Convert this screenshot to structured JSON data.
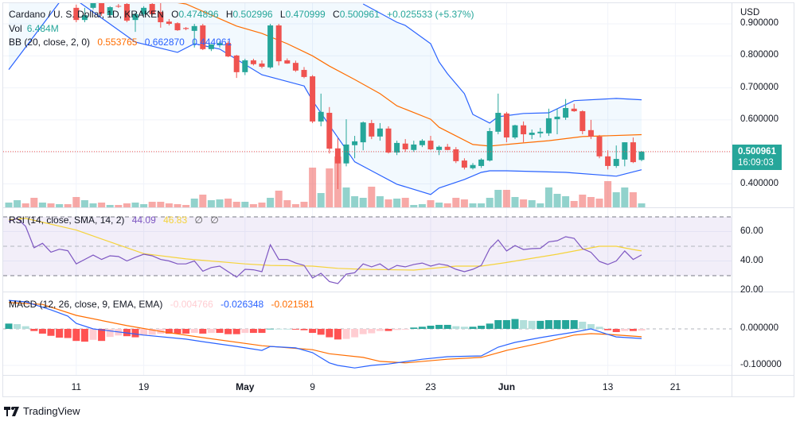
{
  "header": {
    "symbol": "Cardano / U. S. Dollar, 1D, KRAKEN",
    "o_label": "O",
    "o": "0.474896",
    "h_label": "H",
    "h": "0.502996",
    "l_label": "L",
    "l": "0.470999",
    "c_label": "C",
    "c": "0.500961",
    "change": "+0.025533 (+5.37%)"
  },
  "volume": {
    "label": "Vol",
    "value": "6.484M"
  },
  "bb": {
    "label": "BB (20, close, 2, 0)",
    "basis": "0.553765",
    "upper": "0.662870",
    "lower": "0.444061"
  },
  "rsi": {
    "label": "RSI (14, close, SMA, 14, 2)",
    "value": "44.09",
    "sma": "46.83",
    "extra1": "∅",
    "extra2": "∅"
  },
  "macd": {
    "label": "MACD (12, 26, close, 9, EMA, EMA)",
    "hist": "-0.004766",
    "macd": "-0.026348",
    "signal": "-0.021581"
  },
  "price_axis": {
    "currency": "USD",
    "ticks": [
      "0.900000",
      "0.800000",
      "0.700000",
      "0.600000",
      "0.400000"
    ],
    "last_price": "0.500961",
    "countdown": "16:09:03"
  },
  "rsi_axis": {
    "ticks": [
      "60.00",
      "40.00",
      "20.00"
    ]
  },
  "macd_axis": {
    "ticks": [
      "0.000000",
      "-0.100000"
    ]
  },
  "time_axis": {
    "ticks": [
      {
        "label": "11",
        "date": "Apr 11"
      },
      {
        "label": "19",
        "date": "Apr 19"
      },
      {
        "label": "May",
        "date": "May 1"
      },
      {
        "label": "9",
        "date": "May 9"
      },
      {
        "label": "23",
        "date": "May 23"
      },
      {
        "label": "Jun",
        "date": "Jun 1"
      },
      {
        "label": "13",
        "date": "Jun 13"
      },
      {
        "label": "21",
        "date": "Jun 21"
      }
    ]
  },
  "brand": "TradingView",
  "colors": {
    "up": "#26a69a",
    "down": "#ef5350",
    "bb_basis": "#ff6d00",
    "bb_band": "#2962ff",
    "rsi": "#7e57c2",
    "rsi_sma": "#f5d33b",
    "macd": "#2962ff",
    "signal": "#ff6d00",
    "text_green": "#26a69a"
  },
  "chart_data": {
    "type": "candlestick",
    "title": "Cardano / U. S. Dollar, 1D, KRAKEN",
    "ylim": [
      0.33,
      0.974
    ],
    "grid": true,
    "candles_fields": [
      "date",
      "open",
      "high",
      "low",
      "close",
      "volume_M",
      "volume_up"
    ],
    "candles": [
      [
        "Apr 3",
        null,
        null,
        null,
        null,
        7.8,
        true
      ],
      [
        "Apr 4",
        null,
        null,
        null,
        null,
        11.7,
        true
      ],
      [
        "Apr 5",
        null,
        null,
        null,
        null,
        6.5,
        false
      ],
      [
        "Apr 6",
        null,
        null,
        null,
        null,
        15.6,
        false
      ],
      [
        "Apr 7",
        null,
        null,
        null,
        null,
        7.8,
        true
      ],
      [
        "Apr 8",
        null,
        null,
        null,
        null,
        6.5,
        false
      ],
      [
        "Apr 9",
        null,
        null,
        null,
        null,
        5.2,
        true
      ],
      [
        "Apr 10",
        null,
        null,
        null,
        null,
        5.2,
        false
      ],
      [
        "Apr 11",
        0.95,
        0.96,
        0.905,
        0.912,
        16.9
      ],
      [
        "Apr 12",
        0.912,
        0.95,
        0.905,
        0.927,
        11.7
      ],
      [
        "Apr 13",
        0.95,
        0.975,
        0.945,
        0.965,
        6.5
      ],
      [
        "Apr 14",
        0.965,
        0.97,
        0.925,
        0.932,
        7.8
      ],
      [
        "Apr 15",
        0.927,
        0.955,
        0.92,
        0.952,
        3.9
      ],
      [
        "Apr 16",
        0.956,
        0.962,
        0.95,
        0.954,
        3.9
      ],
      [
        "Apr 17",
        0.962,
        0.968,
        0.905,
        0.91,
        6.5
      ],
      [
        "Apr 18",
        0.912,
        0.935,
        0.875,
        0.93,
        7.8
      ],
      [
        "Apr 19",
        0.93,
        0.955,
        0.925,
        0.95,
        5.2
      ],
      [
        "Apr 20",
        0.962,
        0.968,
        0.925,
        0.93,
        9.1
      ],
      [
        "Apr 21",
        0.937,
        0.965,
        0.888,
        0.905,
        9.1
      ],
      [
        "Apr 22",
        0.907,
        0.915,
        0.895,
        0.9,
        6.5
      ],
      [
        "Apr 23",
        0.902,
        0.905,
        0.878,
        0.88,
        5.2
      ],
      [
        "Apr 24",
        0.887,
        0.89,
        0.88,
        0.884,
        3.9
      ],
      [
        "Apr 25",
        0.878,
        0.9,
        0.826,
        0.893,
        14.3
      ],
      [
        "Apr 26",
        0.895,
        0.9,
        0.818,
        0.821,
        20.8
      ],
      [
        "Apr 27",
        0.821,
        0.836,
        0.815,
        0.836,
        11.7
      ],
      [
        "Apr 28",
        0.833,
        0.845,
        0.826,
        0.84,
        13.0
      ],
      [
        "Apr 29",
        0.84,
        0.846,
        0.796,
        0.798,
        14.3
      ],
      [
        "Apr 30",
        0.801,
        0.803,
        0.731,
        0.749,
        9.1
      ],
      [
        "May 1",
        0.749,
        0.791,
        0.74,
        0.786,
        9.1
      ],
      [
        "May 2",
        0.786,
        0.791,
        0.77,
        0.774,
        5.2
      ],
      [
        "May 3",
        0.776,
        0.786,
        0.761,
        0.766,
        7.8
      ],
      [
        "May 4",
        0.764,
        0.9,
        0.76,
        0.895,
        15.6
      ],
      [
        "May 5",
        0.895,
        0.9,
        0.77,
        0.783,
        27.3
      ],
      [
        "May 6",
        0.786,
        0.792,
        0.775,
        0.776,
        11.7
      ],
      [
        "May 7",
        0.778,
        0.785,
        0.75,
        0.754,
        5.2
      ],
      [
        "May 8",
        0.756,
        0.765,
        0.73,
        0.734,
        9.1
      ],
      [
        "May 9",
        0.736,
        0.74,
        0.59,
        0.595,
        65.0
      ],
      [
        "May 10",
        0.595,
        0.682,
        0.58,
        0.625,
        23.4
      ],
      [
        "May 11",
        0.622,
        0.64,
        0.495,
        0.51,
        63.7
      ],
      [
        "May 12",
        0.511,
        0.543,
        0.384,
        0.464,
        83.2
      ],
      [
        "May 13",
        0.464,
        0.602,
        0.455,
        0.523,
        32.5
      ],
      [
        "May 14",
        0.521,
        0.55,
        0.48,
        0.533,
        18.2
      ],
      [
        "May 15",
        0.53,
        0.595,
        0.505,
        0.592,
        15.6
      ],
      [
        "May 16",
        0.59,
        0.6,
        0.54,
        0.548,
        33.8
      ],
      [
        "May 17",
        0.548,
        0.59,
        0.535,
        0.573,
        18.2
      ],
      [
        "May 18",
        0.573,
        0.58,
        0.495,
        0.498,
        13.0
      ],
      [
        "May 19",
        0.498,
        0.535,
        0.49,
        0.528,
        14.3
      ],
      [
        "May 20",
        0.526,
        0.54,
        0.5,
        0.508,
        15.6
      ],
      [
        "May 21",
        0.506,
        0.535,
        0.5,
        0.523,
        3.9
      ],
      [
        "May 22",
        0.521,
        0.54,
        0.515,
        0.535,
        5.2
      ],
      [
        "May 23",
        0.535,
        0.55,
        0.505,
        0.508,
        11.7
      ],
      [
        "May 24",
        0.506,
        0.52,
        0.49,
        0.516,
        7.8
      ],
      [
        "May 25",
        0.516,
        0.525,
        0.505,
        0.506,
        6.5
      ],
      [
        "May 26",
        0.508,
        0.515,
        0.465,
        0.471,
        15.6
      ],
      [
        "May 27",
        0.473,
        0.48,
        0.445,
        0.451,
        13.0
      ],
      [
        "May 28",
        0.449,
        0.465,
        0.445,
        0.459,
        6.5
      ],
      [
        "May 29",
        0.456,
        0.48,
        0.45,
        0.476,
        6.5
      ],
      [
        "May 30",
        0.473,
        0.575,
        0.47,
        0.565,
        15.6
      ],
      [
        "May 31",
        0.563,
        0.682,
        0.555,
        0.622,
        28.6
      ],
      [
        "Jun 1",
        0.62,
        0.625,
        0.53,
        0.545,
        28.6
      ],
      [
        "Jun 2",
        0.545,
        0.585,
        0.54,
        0.583,
        16.9
      ],
      [
        "Jun 3",
        0.583,
        0.595,
        0.53,
        0.555,
        13.0
      ],
      [
        "Jun 4",
        0.553,
        0.57,
        0.54,
        0.56,
        11.7
      ],
      [
        "Jun 5",
        0.558,
        0.575,
        0.545,
        0.563,
        6.5
      ],
      [
        "Jun 6",
        0.558,
        0.635,
        0.55,
        0.605,
        32.5
      ],
      [
        "Jun 7",
        0.602,
        0.635,
        0.555,
        0.61,
        22.1
      ],
      [
        "Jun 8",
        0.607,
        0.665,
        0.6,
        0.637,
        18.2
      ],
      [
        "Jun 9",
        0.635,
        0.65,
        0.625,
        0.627,
        10.4
      ],
      [
        "Jun 10",
        0.627,
        0.63,
        0.555,
        0.565,
        20.8
      ],
      [
        "Jun 11",
        0.568,
        0.6,
        0.54,
        0.548,
        16.9
      ],
      [
        "Jun 12",
        0.548,
        0.553,
        0.48,
        0.486,
        14.3
      ],
      [
        "Jun 13",
        0.486,
        0.505,
        0.445,
        0.456,
        42.9
      ],
      [
        "Jun 14",
        0.456,
        0.52,
        0.45,
        0.478,
        24.7
      ],
      [
        "Jun 15",
        0.476,
        0.53,
        0.455,
        0.53,
        32.5
      ],
      [
        "Jun 16",
        0.53,
        0.545,
        0.465,
        0.468,
        24.7
      ],
      [
        "Jun 17",
        0.474896,
        0.502996,
        0.470999,
        0.500961,
        6.484
      ]
    ],
    "bb_upper": [
      [
        "May 15",
        0.962
      ],
      [
        "May 19",
        0.905
      ],
      [
        "May 20",
        0.895
      ],
      [
        "May 23",
        0.838
      ],
      [
        "May 24",
        0.781
      ],
      [
        "May 25",
        0.744
      ],
      [
        "May 27",
        0.682
      ],
      [
        "May 28",
        0.617
      ],
      [
        "May 30",
        0.59
      ],
      [
        "May 31",
        0.61
      ],
      [
        "Jun 3",
        0.62
      ],
      [
        "Jun 6",
        0.622
      ],
      [
        "Jun 9",
        0.66
      ],
      [
        "Jun 14",
        0.667
      ],
      [
        "Jun 17",
        0.66287
      ]
    ],
    "bb_basis": [
      [
        "Apr 21",
        0.974
      ],
      [
        "Apr 24",
        0.962
      ],
      [
        "Apr 30",
        0.893
      ],
      [
        "May 3",
        0.87
      ],
      [
        "May 6",
        0.838
      ],
      [
        "May 9",
        0.8
      ],
      [
        "May 11",
        0.768
      ],
      [
        "May 14",
        0.726
      ],
      [
        "May 17",
        0.682
      ],
      [
        "May 19",
        0.644
      ],
      [
        "May 23",
        0.602
      ],
      [
        "May 24",
        0.577
      ],
      [
        "May 28",
        0.523
      ],
      [
        "May 30",
        0.518
      ],
      [
        "Jun 3",
        0.528
      ],
      [
        "Jun 6",
        0.535
      ],
      [
        "Jun 10",
        0.548
      ],
      [
        "Jun 17",
        0.553765
      ]
    ],
    "bb_lower": [
      [
        "Apr 3",
        0.757
      ],
      [
        "Apr 9",
        0.967
      ],
      [
        "Apr 10",
        0.99
      ],
      [
        "Apr 11",
        0.974
      ],
      [
        "Apr 13",
        0.937
      ],
      [
        "Apr 18",
        0.843
      ],
      [
        "Apr 23",
        0.811
      ],
      [
        "Apr 25",
        0.838
      ],
      [
        "Apr 28",
        0.821
      ],
      [
        "May 3",
        0.741
      ],
      [
        "May 8",
        0.706
      ],
      [
        "May 9",
        0.66
      ],
      [
        "May 11",
        0.583
      ],
      [
        "May 14",
        0.469
      ],
      [
        "May 16",
        0.441
      ],
      [
        "May 19",
        0.399
      ],
      [
        "May 23",
        0.367
      ],
      [
        "May 24",
        0.387
      ],
      [
        "May 27",
        0.414
      ],
      [
        "May 29",
        0.436
      ],
      [
        "May 30",
        0.441
      ],
      [
        "Jun 1",
        0.441
      ],
      [
        "Jun 8",
        0.436
      ],
      [
        "Jun 14",
        0.424
      ],
      [
        "Jun 17",
        0.444061
      ]
    ],
    "rsi": [
      67,
      68.9,
      63.5,
      49,
      52,
      46,
      48,
      47,
      38,
      41,
      44,
      41,
      43.5,
      43,
      40,
      42.5,
      44.6,
      43.5,
      41,
      40,
      38,
      38,
      40,
      33,
      35.5,
      36.5,
      32.7,
      29,
      34.3,
      34,
      32.7,
      51,
      41,
      41,
      38.6,
      37,
      28.4,
      31.6,
      26,
      24.6,
      31,
      32,
      38,
      36,
      38,
      34,
      37,
      36,
      37.6,
      38.6,
      36.5,
      38,
      37,
      34.3,
      32.7,
      34.3,
      37,
      48.4,
      54.3,
      46.8,
      50.5,
      47.8,
      48.4,
      48.6,
      53,
      53.8,
      56.5,
      55.4,
      48.4,
      45.9,
      39.7,
      37.6,
      40,
      46.8,
      41,
      44.09
    ],
    "rsi_sma": [
      [
        "Apr 3",
        68
      ],
      [
        "Apr 5",
        69
      ],
      [
        "Apr 11",
        61
      ],
      [
        "Apr 14",
        55
      ],
      [
        "Apr 19",
        45
      ],
      [
        "Apr 24",
        41.4
      ],
      [
        "May 1",
        38
      ],
      [
        "May 4",
        37
      ],
      [
        "May 9",
        36.5
      ],
      [
        "May 12",
        35
      ],
      [
        "May 15",
        34.3
      ],
      [
        "May 21",
        33.8
      ],
      [
        "May 26",
        36.5
      ],
      [
        "May 29",
        36.5
      ],
      [
        "Jun 1",
        39
      ],
      [
        "Jun 7",
        44.6
      ],
      [
        "Jun 12",
        50
      ],
      [
        "Jun 14",
        50
      ],
      [
        "Jun 16",
        47.8
      ],
      [
        "Jun 17",
        46.83
      ]
    ],
    "rsi_levels": {
      "upper": 70,
      "middle": 50,
      "lower": 30
    },
    "macd_line": [
      [
        "Apr 3",
        0.078
      ],
      [
        "Apr 5",
        0.074
      ],
      [
        "Apr 8",
        0.052
      ],
      [
        "Apr 10",
        0.035
      ],
      [
        "Apr 11",
        0.015
      ],
      [
        "Apr 13",
        0
      ],
      [
        "Apr 17",
        -0.011
      ],
      [
        "Apr 19",
        -0.017
      ],
      [
        "Apr 24",
        -0.028
      ],
      [
        "Apr 26",
        -0.035
      ],
      [
        "Apr 30",
        -0.048
      ],
      [
        "May 3",
        -0.059
      ],
      [
        "May 4",
        -0.048
      ],
      [
        "May 7",
        -0.052
      ],
      [
        "May 9",
        -0.065
      ],
      [
        "May 11",
        -0.093
      ],
      [
        "May 12",
        -0.1
      ],
      [
        "May 14",
        -0.107
      ],
      [
        "May 16",
        -0.1
      ],
      [
        "May 18",
        -0.096
      ],
      [
        "May 22",
        -0.083
      ],
      [
        "May 25",
        -0.076
      ],
      [
        "May 29",
        -0.074
      ],
      [
        "May 31",
        -0.05
      ],
      [
        "Jun 2",
        -0.037
      ],
      [
        "Jun 5",
        -0.024
      ],
      [
        "Jun 9",
        -0.009
      ],
      [
        "Jun 11",
        0
      ],
      [
        "Jun 13",
        -0.015
      ],
      [
        "Jun 14",
        -0.022
      ],
      [
        "Jun 17",
        -0.026348
      ]
    ],
    "signal_line": [
      [
        "Apr 3",
        0.072
      ],
      [
        "Apr 7",
        0.067
      ],
      [
        "Apr 11",
        0.037
      ],
      [
        "Apr 17",
        0.009
      ],
      [
        "Apr 21",
        -0.007
      ],
      [
        "Apr 26",
        -0.024
      ],
      [
        "May 3",
        -0.046
      ],
      [
        "May 9",
        -0.057
      ],
      [
        "May 11",
        -0.068
      ],
      [
        "May 15",
        -0.078
      ],
      [
        "May 17",
        -0.089
      ],
      [
        "May 20",
        -0.093
      ],
      [
        "May 25",
        -0.083
      ],
      [
        "May 29",
        -0.078
      ],
      [
        "Jun 1",
        -0.059
      ],
      [
        "Jun 5",
        -0.039
      ],
      [
        "Jun 9",
        -0.017
      ],
      [
        "Jun 11",
        -0.013
      ],
      [
        "Jun 13",
        -0.015
      ],
      [
        "Jun 17",
        -0.021581
      ]
    ],
    "macd_histogram": [
      0.0145,
      0.013,
      0.0073,
      -0.0058,
      -0.013,
      -0.019,
      -0.024,
      -0.025,
      -0.033,
      -0.035,
      -0.03,
      -0.033,
      -0.022,
      -0.018,
      -0.02,
      -0.023,
      -0.018,
      -0.016,
      -0.013,
      -0.013,
      -0.013,
      -0.013,
      -0.011,
      -0.013,
      -0.011,
      -0.011,
      -0.0145,
      -0.0145,
      -0.011,
      -0.011,
      -0.011,
      0.0005,
      0.0003,
      0.0002,
      -0.002,
      -0.0036,
      -0.011,
      -0.016,
      -0.023,
      -0.029,
      -0.0275,
      -0.023,
      -0.0145,
      -0.012,
      -0.0058,
      -0.0058,
      -0.003,
      -0.002,
      0.0036,
      0.0058,
      0.0087,
      0.011,
      0.011,
      0.0073,
      0.0058,
      0.0058,
      0.0087,
      0.0145,
      0.024,
      0.024,
      0.027,
      0.024,
      0.022,
      0.022,
      0.024,
      0.024,
      0.024,
      0.024,
      0.0196,
      0.013,
      0.0058,
      -0.0036,
      -0.0087,
      -0.0058,
      -0.0058,
      -0.004766
    ]
  }
}
